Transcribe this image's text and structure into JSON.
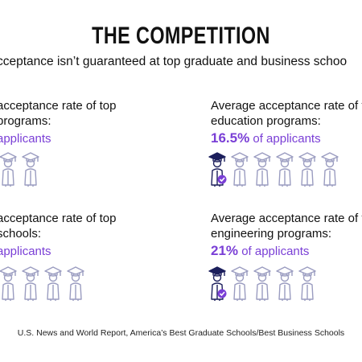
{
  "title": "THE COMPETITION",
  "subtitle": "cceptance isn’t guaranteed at top graduate and business schoo",
  "panels": [
    {
      "line1": "acceptance rate of top",
      "line2": " programs:",
      "stat_value": "",
      "stat_rest": "applicants",
      "highlighted_count": 0,
      "total_count": 2
    },
    {
      "line1": "Average acceptance rate of top",
      "line2": "education programs:",
      "stat_value": "16.5%",
      "stat_rest": " of applicants",
      "highlighted_count": 1,
      "total_count": 6
    },
    {
      "line1": "acceptance rate of top",
      "line2": "schools:",
      "stat_value": "",
      "stat_rest": "applicants",
      "highlighted_count": 0,
      "total_count": 4
    },
    {
      "line1": "Average acceptance rate of top",
      "line2": "engineering programs:",
      "stat_value": "21%",
      "stat_rest": " of applicants",
      "highlighted_count": 1,
      "total_count": 5
    }
  ],
  "source": "U.S. News and World Report, America’s Best Graduate Schools/Best Business Schools",
  "colors": {
    "accent": "#7a3fd6",
    "icon_outline": "#9a9cc0",
    "icon_dark": "#1c1f5c",
    "icon_check": "#7a3fd6"
  },
  "icon": "graduate-figure-icon"
}
